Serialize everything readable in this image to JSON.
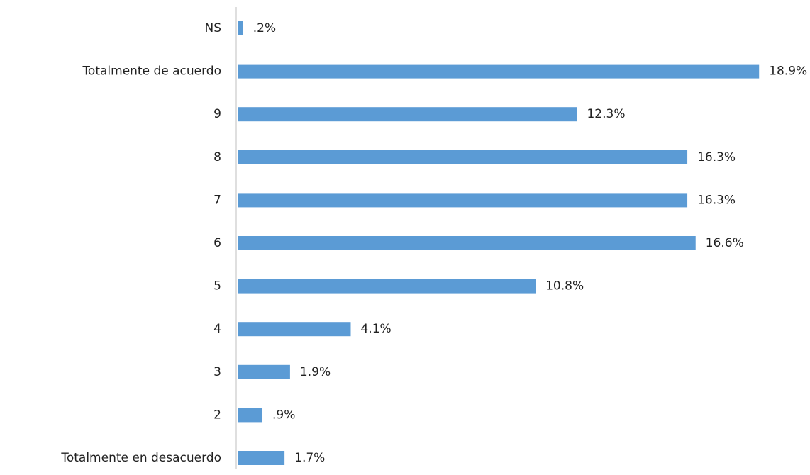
{
  "chart_data": {
    "type": "bar",
    "orientation": "horizontal",
    "categories": [
      "NS",
      "Totalmente de acuerdo",
      "9",
      "8",
      "7",
      "6",
      "5",
      "4",
      "3",
      "2",
      "Totalmente en desacuerdo"
    ],
    "values": [
      0.2,
      18.9,
      12.3,
      16.3,
      16.3,
      16.6,
      10.8,
      4.1,
      1.9,
      0.9,
      1.7
    ],
    "value_labels": [
      ".2%",
      "18.9%",
      "12.3%",
      "16.3%",
      "16.3%",
      "16.6%",
      "10.8%",
      "4.1%",
      "1.9%",
      ".9%",
      "1.7%"
    ],
    "color": "#5b9bd5",
    "xlim": [
      0,
      20
    ]
  }
}
